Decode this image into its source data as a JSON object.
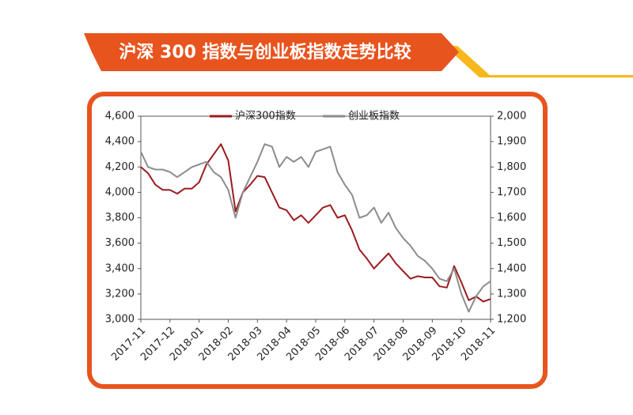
{
  "chart_data": {
    "type": "line",
    "title": "沪深 300 指数与创业板指数走势比较",
    "categories": [
      "2017-11",
      null,
      null,
      null,
      "2017-12",
      null,
      null,
      null,
      "2018-01",
      null,
      null,
      null,
      "2018-02",
      null,
      null,
      null,
      "2018-03",
      null,
      null,
      null,
      "2018-04",
      null,
      null,
      null,
      "2018-05",
      null,
      null,
      null,
      "2018-06",
      null,
      null,
      null,
      "2018-07",
      null,
      null,
      null,
      "2018-08",
      null,
      null,
      null,
      "2018-09",
      null,
      null,
      null,
      "2018-10",
      null,
      null,
      null,
      "2018-11"
    ],
    "series": [
      {
        "name": "沪深300指数",
        "color": "#9b1c1f",
        "axis": "y",
        "values": [
          4200,
          4150,
          4060,
          4020,
          4020,
          3990,
          4030,
          4030,
          4080,
          4220,
          4300,
          4380,
          4250,
          3850,
          4000,
          4060,
          4130,
          4120,
          4000,
          3880,
          3860,
          3780,
          3820,
          3760,
          3820,
          3880,
          3900,
          3800,
          3820,
          3700,
          3550,
          3480,
          3400,
          3460,
          3520,
          3440,
          3380,
          3320,
          3340,
          3330,
          3330,
          3260,
          3250,
          3420,
          3290,
          3150,
          3180,
          3140,
          3160
        ]
      },
      {
        "name": "创业板指数",
        "color": "#8c8c8c",
        "axis": "y2",
        "values": [
          1860,
          1800,
          1790,
          1790,
          1780,
          1760,
          1780,
          1800,
          1810,
          1820,
          1780,
          1760,
          1710,
          1600,
          1700,
          1760,
          1820,
          1890,
          1880,
          1800,
          1840,
          1820,
          1840,
          1800,
          1860,
          1870,
          1880,
          1780,
          1730,
          1690,
          1600,
          1610,
          1640,
          1580,
          1620,
          1560,
          1520,
          1490,
          1450,
          1430,
          1400,
          1360,
          1350,
          1400,
          1300,
          1230,
          1290,
          1330,
          1350
        ]
      }
    ],
    "ylim": [
      3000,
      4600
    ],
    "yticks": [
      {
        "value": 3000,
        "label": "3,000"
      },
      {
        "value": 3200,
        "label": "3,200"
      },
      {
        "value": 3400,
        "label": "3,400"
      },
      {
        "value": 3600,
        "label": "3,600"
      },
      {
        "value": 3800,
        "label": "3,800"
      },
      {
        "value": 4000,
        "label": "4,000"
      },
      {
        "value": 4200,
        "label": "4,200"
      },
      {
        "value": 4400,
        "label": "4,400"
      },
      {
        "value": 4600,
        "label": "4,600"
      }
    ],
    "y2lim": [
      1200,
      2000
    ],
    "y2ticks": [
      {
        "value": 1200,
        "label": "1,200"
      },
      {
        "value": 1300,
        "label": "1,300"
      },
      {
        "value": 1400,
        "label": "1,400"
      },
      {
        "value": 1500,
        "label": "1,500"
      },
      {
        "value": 1600,
        "label": "1,600"
      },
      {
        "value": 1700,
        "label": "1,700"
      },
      {
        "value": 1800,
        "label": "1,800"
      },
      {
        "value": 1900,
        "label": "1,900"
      },
      {
        "value": 2000,
        "label": "2,000"
      }
    ],
    "legend": "top"
  }
}
